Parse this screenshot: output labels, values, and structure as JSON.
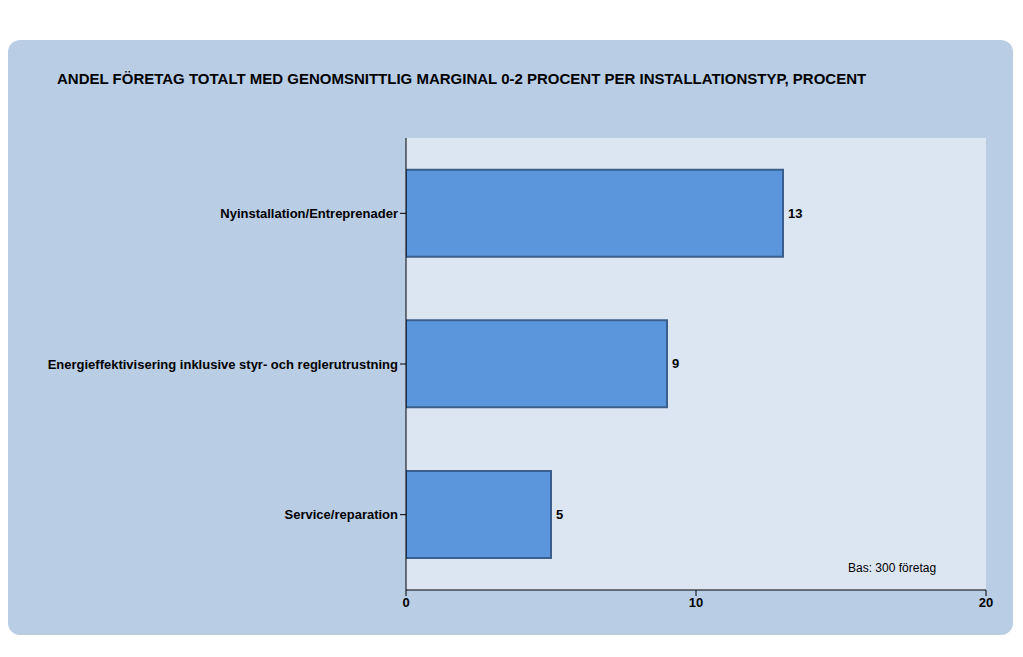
{
  "chart_data": {
    "type": "bar",
    "title": "ANDEL FÖRETAG TOTALT MED GENOMSNITTLIG MARGINAL 0-2 PROCENT PER INSTALLATIONSTYP, PROCENT",
    "categories": [
      "Nyinstallation/Entreprenader",
      "Energieffektivisering inklusive styr- och reglerutrustning",
      "Service/reparation"
    ],
    "values": [
      13,
      9,
      5
    ],
    "color": "#5b96dc",
    "orientation": "horizontal",
    "xlim": [
      0,
      20
    ],
    "xticks": [
      0,
      10,
      20
    ],
    "grid": false,
    "data_labels": true,
    "annotation": "Bas: 300 företag"
  }
}
